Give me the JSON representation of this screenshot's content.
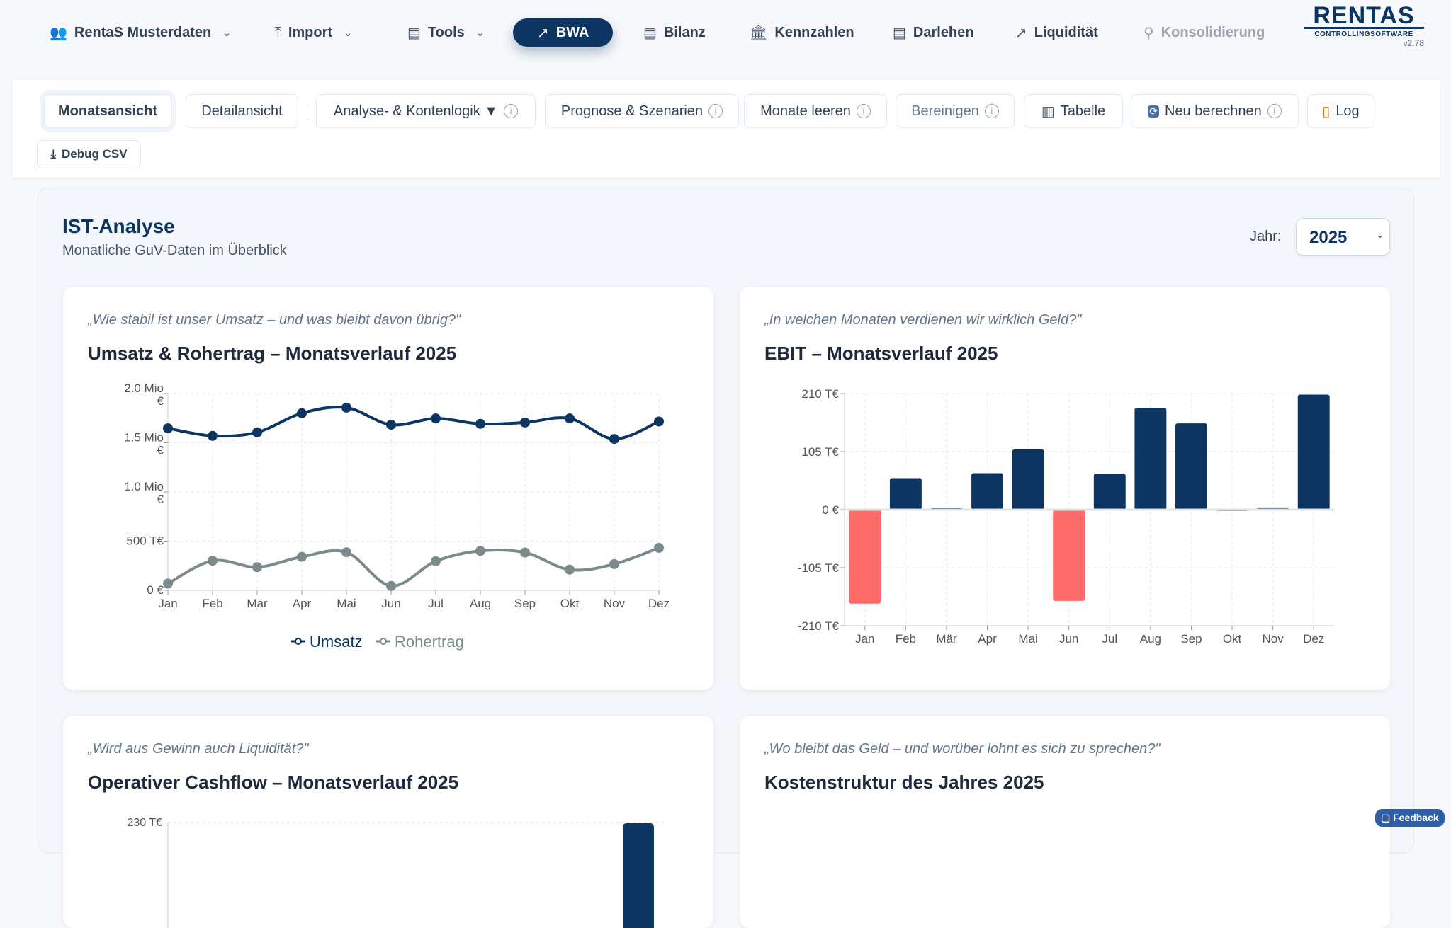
{
  "nav": {
    "items": [
      {
        "label": "RentaS Musterdaten",
        "icon": "users-icon",
        "glyph": "👥",
        "chevron": true
      },
      {
        "label": "Import",
        "icon": "upload-icon",
        "glyph": "⤒",
        "chevron": true
      },
      {
        "label": "Tools",
        "icon": "calculator-icon",
        "glyph": "▤",
        "chevron": true
      },
      {
        "label": "BWA",
        "icon": "trend-up-icon",
        "glyph": "↗",
        "active": true
      },
      {
        "label": "Bilanz",
        "icon": "calculator-icon",
        "glyph": "▤"
      },
      {
        "label": "Kennzahlen",
        "icon": "bank-icon",
        "glyph": "🏛"
      },
      {
        "label": "Darlehen",
        "icon": "calculator-icon",
        "glyph": "▤"
      },
      {
        "label": "Liquidität",
        "icon": "trend-up-icon",
        "glyph": "↗"
      },
      {
        "label": "Konsolidierung",
        "icon": "route-icon",
        "glyph": "⚲",
        "disabled": true
      }
    ],
    "logo": {
      "name": "RENTAS",
      "tagline": "CONTROLLINGSOFTWARE",
      "version": "v2.78"
    }
  },
  "toolbar": {
    "buttons": [
      {
        "label": "Monatsansicht"
      },
      {
        "label": "Detailansicht"
      },
      {
        "label": "Analyse- & Kontenlogik ▼"
      },
      {
        "label": "Prognose & Szenarien"
      },
      {
        "label": "Monate leeren"
      },
      {
        "label": "Bereinigen"
      },
      {
        "label": "Tabelle"
      },
      {
        "label": "Neu berechnen"
      },
      {
        "label": "Log"
      }
    ],
    "debug": "Debug CSV",
    "info": "i"
  },
  "header": {
    "title": "IST-Analyse",
    "subtitle": "Monatliche GuV-Daten im Überblick",
    "year_label": "Jahr:",
    "year": "2025"
  },
  "cards": [
    {
      "quote": "„Wie stabil ist unser Umsatz – und was bleibt davon übrig?\"",
      "title": "Umsatz & Rohertrag – Monatsverlauf 2025"
    },
    {
      "quote": "„In welchen Monaten verdienen wir wirklich Geld?\"",
      "title": "EBIT – Monatsverlauf 2025"
    },
    {
      "quote": "„Wird aus Gewinn auch Liquidität?\"",
      "title": "Operativer Cashflow – Monatsverlauf 2025"
    },
    {
      "quote": "„Wo bleibt das Geld – und worüber lohnt es sich zu sprechen?\"",
      "title": "Kostenstruktur des Jahres 2025"
    }
  ],
  "feedback": "Feedback",
  "chart_data": [
    {
      "type": "line",
      "title": "Umsatz & Rohertrag – Monatsverlauf 2025",
      "categories": [
        "Jan",
        "Feb",
        "Mär",
        "Apr",
        "Mai",
        "Jun",
        "Jul",
        "Aug",
        "Sep",
        "Okt",
        "Nov",
        "Dez"
      ],
      "ylim": [
        0,
        2000000
      ],
      "yticks": [
        {
          "v": 0,
          "l": [
            "0 €"
          ]
        },
        {
          "v": 500000,
          "l": [
            "500 T€"
          ]
        },
        {
          "v": 1000000,
          "l": [
            "1.0 Mio",
            "€"
          ]
        },
        {
          "v": 1500000,
          "l": [
            "1.5 Mio",
            "€"
          ]
        },
        {
          "v": 2000000,
          "l": [
            "2.0 Mio",
            "€"
          ]
        }
      ],
      "grid": true,
      "legend": "bottom",
      "series": [
        {
          "name": "Umsatz",
          "color": "#0d3561",
          "values": [
            1647000,
            1570000,
            1606000,
            1800000,
            1857000,
            1683000,
            1747000,
            1692000,
            1706000,
            1747000,
            1539000,
            1716000
          ]
        },
        {
          "name": "Rohertrag",
          "color": "#7b8b8b",
          "values": [
            69000,
            301000,
            236000,
            341000,
            387000,
            45000,
            296000,
            401000,
            384000,
            210000,
            267000,
            432000
          ]
        }
      ]
    },
    {
      "type": "bar",
      "title": "EBIT – Monatsverlauf 2025",
      "categories": [
        "Jan",
        "Feb",
        "Mär",
        "Apr",
        "Mai",
        "Jun",
        "Jul",
        "Aug",
        "Sep",
        "Okt",
        "Nov",
        "Dez"
      ],
      "ylim": [
        -210,
        210
      ],
      "yticks": [
        {
          "v": 210,
          "l": [
            "210 T€"
          ]
        },
        {
          "v": 105,
          "l": [
            "105 T€"
          ]
        },
        {
          "v": 0,
          "l": [
            "0 €"
          ]
        },
        {
          "v": -105,
          "l": [
            "-105 T€"
          ]
        },
        {
          "v": -210,
          "l": [
            "-210 T€"
          ]
        }
      ],
      "unit": "T€",
      "grid": true,
      "positive_color": "#0d3561",
      "negative_color": "#ff6b6b",
      "values": [
        -170,
        57,
        2,
        66,
        109,
        -165,
        65,
        184,
        156,
        -1.5,
        4,
        208
      ]
    },
    {
      "type": "bar",
      "title": "Operativer Cashflow – Monatsverlauf 2025",
      "yticks": [
        {
          "v": 230,
          "l": [
            "230 T€"
          ]
        }
      ]
    }
  ]
}
